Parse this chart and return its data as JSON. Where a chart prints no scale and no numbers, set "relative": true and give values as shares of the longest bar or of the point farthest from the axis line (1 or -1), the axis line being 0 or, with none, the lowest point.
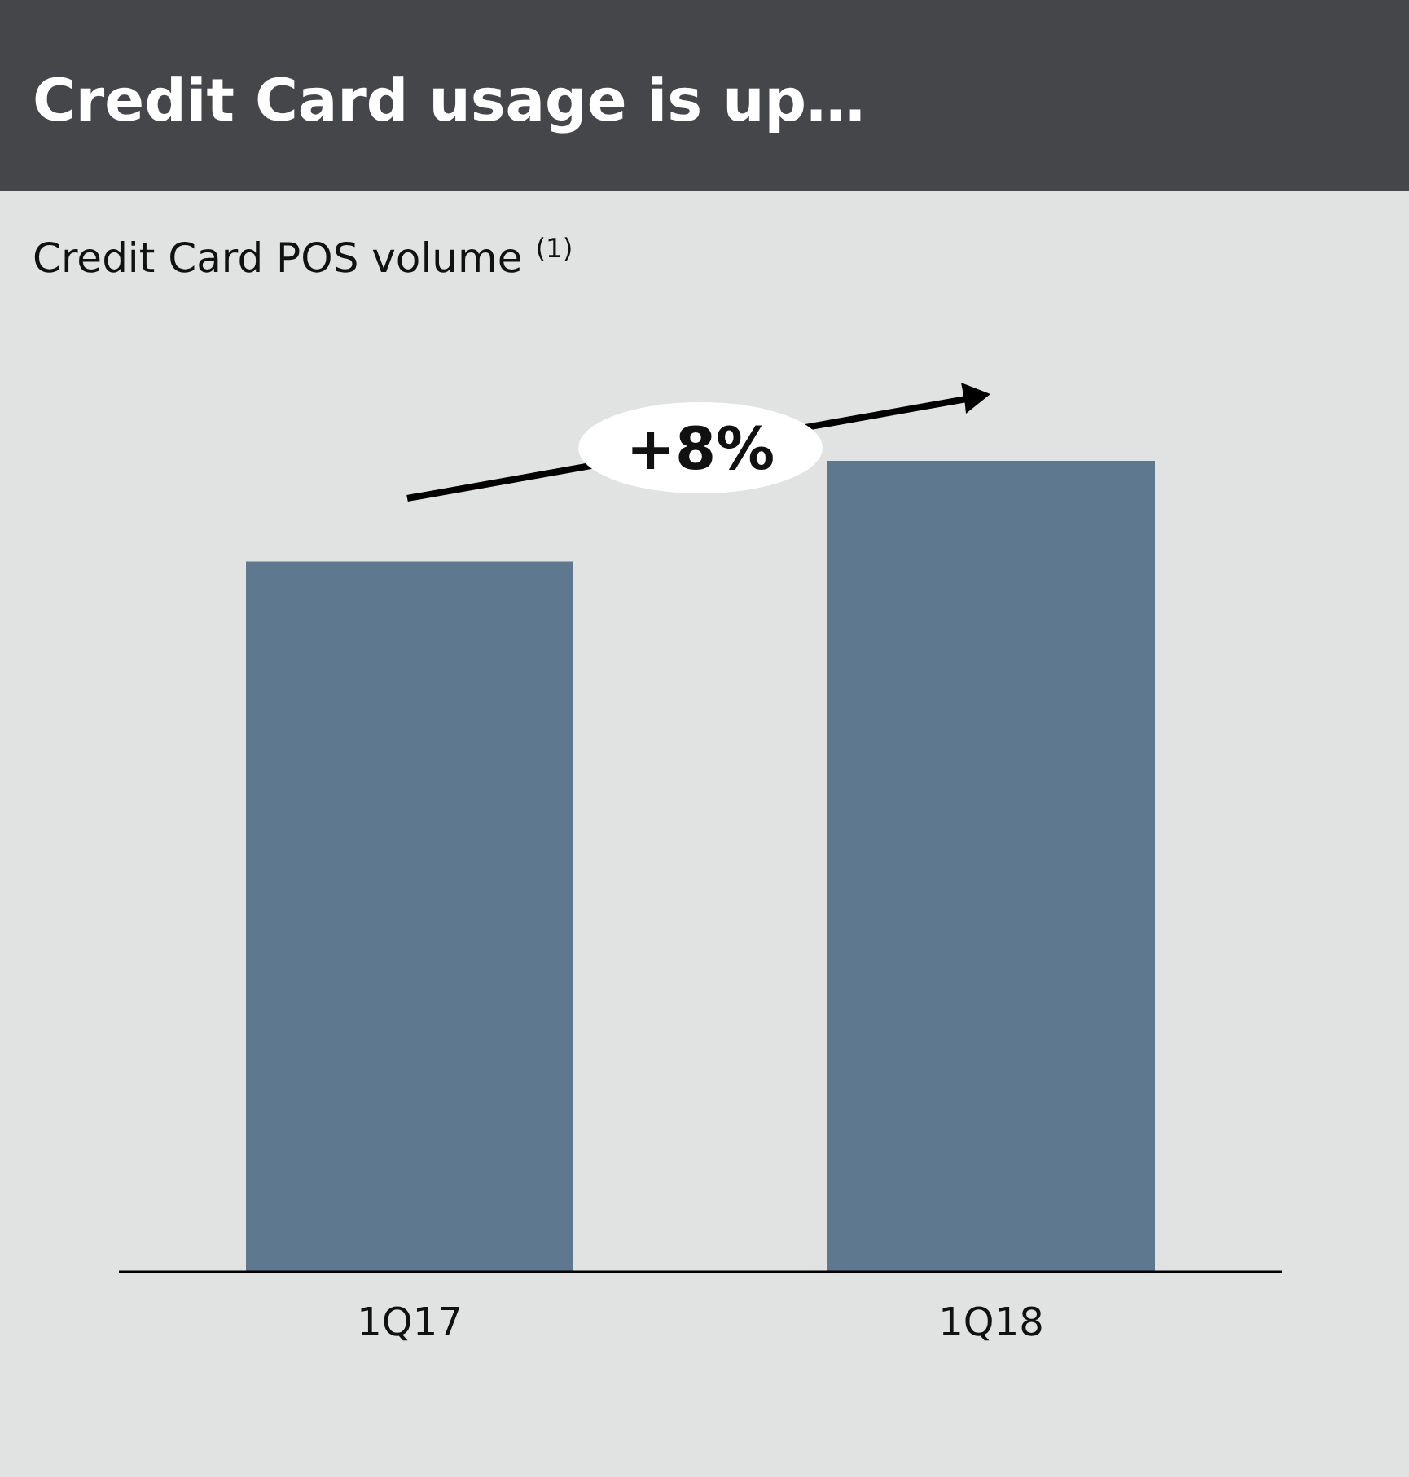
{
  "chart_data": {
    "type": "bar",
    "title": "Credit Card usage is up…",
    "subtitle": "Credit Card POS volume $^{(1)}$",
    "categories": [
      "1Q17",
      "1Q18"
    ],
    "values": [
      0.876,
      1
    ],
    "color": "#5e788f",
    "relative": true,
    "annotations": [
      "+8%"
    ]
  }
}
